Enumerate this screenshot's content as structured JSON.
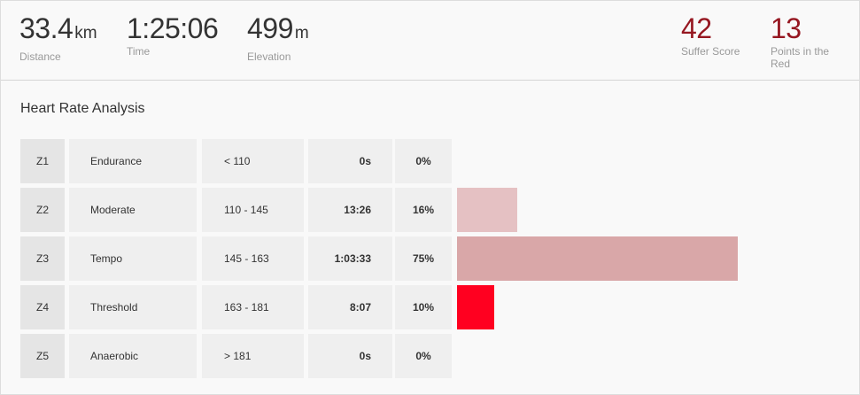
{
  "stats": {
    "distance": {
      "value": "33.4",
      "unit": "km",
      "label": "Distance"
    },
    "time": {
      "value": "1:25:06",
      "label": "Time"
    },
    "elevation": {
      "value": "499",
      "unit": "m",
      "label": "Elevation"
    },
    "suffer_score": {
      "value": "42",
      "label": "Suffer Score"
    },
    "points_in_red": {
      "value": "13",
      "label": "Points in the Red"
    }
  },
  "heart_rate": {
    "title": "Heart Rate Analysis",
    "zones": [
      {
        "zone": "Z1",
        "name": "Endurance",
        "range": "< 110",
        "time": "0s",
        "percent": "0%",
        "fraction": 0.0,
        "color": "#f0f0f0"
      },
      {
        "zone": "Z2",
        "name": "Moderate",
        "range": "110 - 145",
        "time": "13:26",
        "percent": "16%",
        "fraction": 0.16,
        "color": "#e5c1c3"
      },
      {
        "zone": "Z3",
        "name": "Tempo",
        "range": "145 - 163",
        "time": "1:03:33",
        "percent": "75%",
        "fraction": 0.75,
        "color": "#d9a7a8"
      },
      {
        "zone": "Z4",
        "name": "Threshold",
        "range": "163 - 181",
        "time": "8:07",
        "percent": "10%",
        "fraction": 0.1,
        "color": "#ff0020"
      },
      {
        "zone": "Z5",
        "name": "Anaerobic",
        "range": "> 181",
        "time": "0s",
        "percent": "0%",
        "fraction": 0.0,
        "color": "#f0f0f0"
      }
    ]
  }
}
